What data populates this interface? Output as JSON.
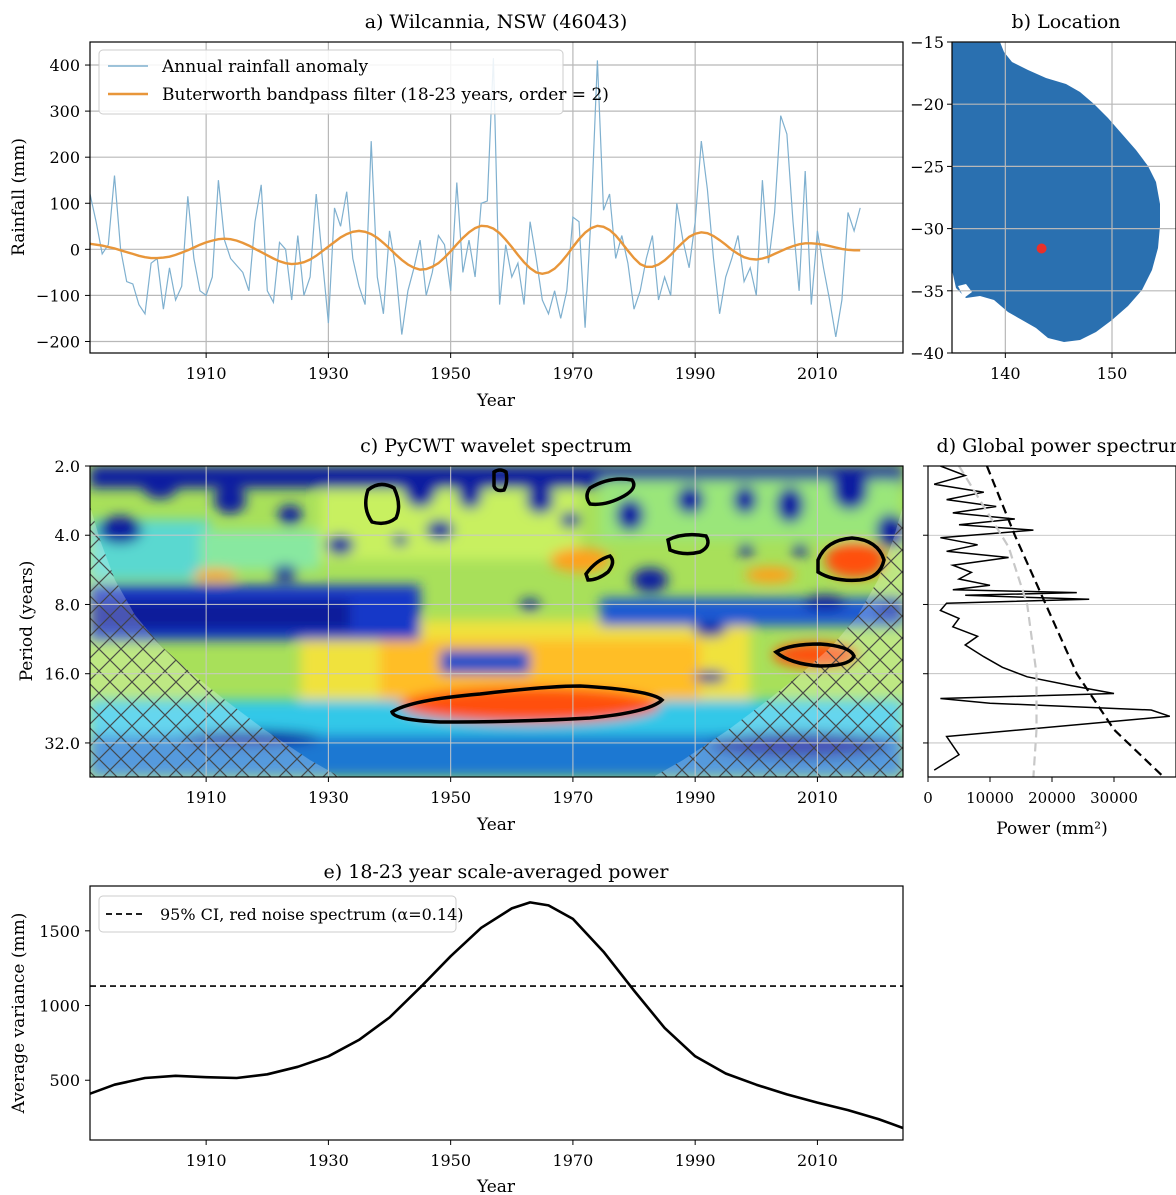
{
  "chart_data": [
    {
      "panel": "a",
      "type": "line",
      "title": "a) Wilcannia, NSW (46043)",
      "xlabel": "Year",
      "ylabel": "Rainfall (mm)",
      "xlim": [
        1891,
        2024
      ],
      "ylim": [
        -225,
        450
      ],
      "xticks": [
        1910,
        1930,
        1950,
        1970,
        1990,
        2010
      ],
      "yticks": [
        -200,
        -100,
        0,
        100,
        200,
        300,
        400
      ],
      "grid": true,
      "legend_position": "top-left",
      "colors": {
        "anomaly": "#7fb0cf",
        "filter": "#e8963a"
      },
      "series": [
        {
          "name": "Annual rainfall anomaly",
          "x_start": 1891,
          "x_step": 1,
          "values": [
            120,
            60,
            -10,
            10,
            160,
            0,
            -70,
            -75,
            -120,
            -140,
            -30,
            -20,
            -130,
            -40,
            -110,
            -80,
            115,
            -20,
            -90,
            -100,
            -60,
            150,
            20,
            -20,
            -35,
            -50,
            -90,
            60,
            140,
            -90,
            -115,
            15,
            0,
            -110,
            30,
            -100,
            -60,
            120,
            -20,
            -160,
            90,
            50,
            125,
            -20,
            -80,
            -120,
            235,
            -60,
            -140,
            40,
            -40,
            -185,
            -90,
            -40,
            20,
            -100,
            -50,
            30,
            10,
            -90,
            145,
            -50,
            20,
            -60,
            100,
            105,
            415,
            -120,
            10,
            -60,
            -30,
            -120,
            60,
            -20,
            -110,
            -140,
            -90,
            -150,
            -90,
            70,
            60,
            -170,
            80,
            410,
            85,
            120,
            -20,
            30,
            -30,
            -130,
            -90,
            -20,
            30,
            -110,
            -60,
            -100,
            100,
            20,
            -40,
            60,
            235,
            130,
            -20,
            -140,
            -60,
            -20,
            30,
            -70,
            -40,
            -100,
            150,
            -30,
            80,
            290,
            250,
            60,
            -90,
            170,
            -120,
            40,
            -40,
            -110,
            -190,
            -110,
            80,
            40,
            90
          ]
        },
        {
          "name": "Buterworth bandpass filter (18-23 years, order = 2)",
          "x_start": 1891,
          "x_step": 1,
          "values": [
            12,
            10,
            8,
            5,
            2,
            -2,
            -6,
            -10,
            -14,
            -17,
            -19,
            -19,
            -18,
            -16,
            -12,
            -7,
            -2,
            4,
            10,
            15,
            19,
            22,
            23,
            22,
            19,
            14,
            8,
            1,
            -6,
            -13,
            -20,
            -26,
            -30,
            -32,
            -31,
            -28,
            -22,
            -14,
            -4,
            6,
            16,
            26,
            33,
            38,
            40,
            38,
            33,
            25,
            14,
            2,
            -11,
            -23,
            -33,
            -40,
            -44,
            -43,
            -38,
            -30,
            -18,
            -4,
            11,
            25,
            37,
            46,
            51,
            50,
            45,
            35,
            21,
            5,
            -12,
            -28,
            -41,
            -50,
            -53,
            -50,
            -42,
            -29,
            -13,
            5,
            22,
            36,
            46,
            51,
            49,
            42,
            30,
            14,
            -3,
            -19,
            -32,
            -38,
            -38,
            -33,
            -24,
            -12,
            2,
            15,
            27,
            34,
            37,
            35,
            29,
            20,
            10,
            -1,
            -10,
            -17,
            -21,
            -22,
            -20,
            -16,
            -10,
            -4,
            2,
            7,
            11,
            13,
            13,
            12,
            10,
            7,
            4,
            1,
            -1,
            -2,
            -2
          ]
        }
      ]
    },
    {
      "panel": "b",
      "type": "map",
      "title": "b) Location",
      "xlim": [
        135,
        156
      ],
      "ylim": [
        -40,
        -15
      ],
      "xticks": [
        140,
        150
      ],
      "yticks": [
        -40,
        -35,
        -30,
        -25,
        -20,
        -15
      ],
      "grid": true,
      "site": {
        "lon": 143.4,
        "lat": -31.6,
        "color": "#e8302a"
      },
      "colors": {
        "land": "#2a70b0"
      }
    },
    {
      "panel": "c",
      "type": "heatmap",
      "title": "c) PyCWT wavelet spectrum",
      "xlabel": "Year",
      "ylabel": "Period (years)",
      "xlim": [
        1891,
        2024
      ],
      "ylim": [
        2,
        45
      ],
      "log_y": true,
      "xticks": [
        1910,
        1930,
        1950,
        1970,
        1990,
        2010
      ],
      "yticks": [
        2.0,
        4.0,
        8.0,
        16.0,
        32.0
      ],
      "colormap": "jet",
      "significant_regions": [
        {
          "year": 1937,
          "period": 2.7
        },
        {
          "year": 1957,
          "period": 2.2
        },
        {
          "year": 1976,
          "period": 2.5
        },
        {
          "year": 1989,
          "period": 3.8
        },
        {
          "year": 1976,
          "period": 5.1
        },
        {
          "year": 2015,
          "period": 5.4
        },
        {
          "year": 2006,
          "period": 13.0
        },
        {
          "year": 1962,
          "period": 20.5
        }
      ]
    },
    {
      "panel": "d",
      "type": "line",
      "title": "d) Global power spectrum",
      "xlabel": "Power (mm²)",
      "xlim": [
        0,
        40000
      ],
      "xticks": [
        0,
        10000,
        20000,
        30000
      ],
      "ylim": [
        2,
        45
      ],
      "log_y": true,
      "series": [
        {
          "name": "",
          "style": "solid-black",
          "x": [
            2000,
            6000,
            1000,
            9000,
            3000,
            11000,
            4000,
            14000,
            5000,
            17000,
            2000,
            8000,
            3000,
            13000,
            4000,
            7000,
            5000,
            10000,
            4000,
            24000,
            6000,
            26000,
            3000,
            2000,
            5000,
            4000,
            8000,
            6000,
            9000,
            12000,
            16000,
            23000,
            30000,
            2000,
            10000,
            36000,
            39000,
            3000,
            5000,
            1000
          ],
          "y": [
            2.0,
            2.2,
            2.4,
            2.6,
            2.8,
            3.0,
            3.2,
            3.4,
            3.6,
            3.8,
            4.1,
            4.4,
            4.7,
            5.0,
            5.4,
            5.8,
            6.2,
            6.6,
            6.9,
            7.1,
            7.3,
            7.6,
            7.9,
            8.5,
            9.2,
            10.0,
            11.0,
            12.0,
            13.5,
            15.0,
            16.5,
            18.0,
            19.5,
            20.5,
            21.5,
            23.0,
            24.5,
            30.0,
            36.0,
            42.0
          ]
        },
        {
          "name": "",
          "style": "dashed-black",
          "x": [
            9500,
            14000,
            19000,
            24000,
            30000,
            38000
          ],
          "y": [
            2.0,
            4.0,
            8.0,
            16.0,
            28.0,
            45.0
          ]
        },
        {
          "name": "",
          "style": "dashed-gray",
          "x": [
            5000,
            9000,
            13000,
            16000,
            17500,
            17500,
            17000
          ],
          "y": [
            2.0,
            3.0,
            4.5,
            8.0,
            16.0,
            28.0,
            45.0
          ]
        }
      ]
    },
    {
      "panel": "e",
      "type": "line",
      "title": "e) 18-23 year scale-averaged power",
      "xlabel": "Year",
      "ylabel": "Average variance (mm)",
      "xlim": [
        1891,
        2024
      ],
      "ylim": [
        100,
        1800
      ],
      "xticks": [
        1910,
        1930,
        1950,
        1970,
        1990,
        2010
      ],
      "yticks": [
        500,
        1000,
        1500
      ],
      "legend_position": "top-left",
      "series": [
        {
          "name": "",
          "style": "solid",
          "x": [
            1891,
            1895,
            1900,
            1905,
            1910,
            1915,
            1920,
            1925,
            1930,
            1935,
            1940,
            1945,
            1950,
            1955,
            1960,
            1963,
            1966,
            1970,
            1975,
            1980,
            1985,
            1990,
            1995,
            2000,
            2005,
            2010,
            2015,
            2020,
            2024
          ],
          "values": [
            410,
            470,
            515,
            530,
            520,
            515,
            540,
            590,
            660,
            770,
            920,
            1120,
            1330,
            1520,
            1650,
            1690,
            1670,
            1580,
            1360,
            1100,
            850,
            660,
            545,
            470,
            405,
            350,
            300,
            240,
            180
          ]
        },
        {
          "name": "95% CI, red noise spectrum (α=0.14)",
          "style": "dashed",
          "value": 1130
        }
      ]
    }
  ]
}
